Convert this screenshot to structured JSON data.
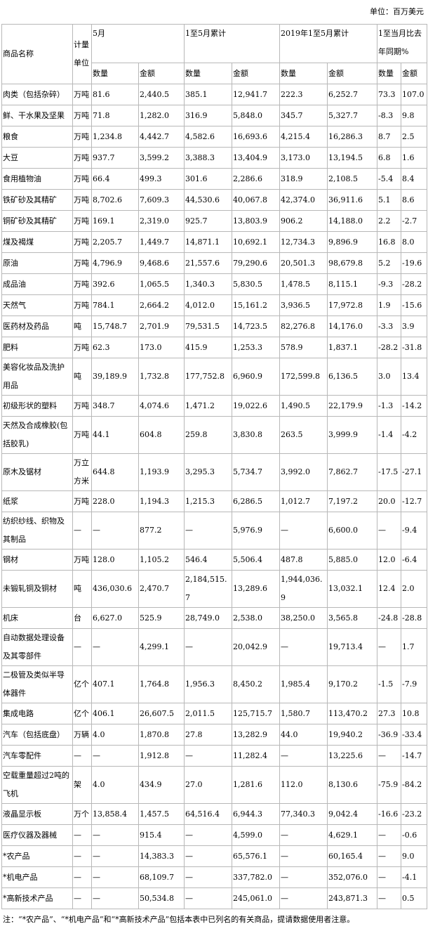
{
  "header": {
    "unit": "单位：百万美元"
  },
  "table": {
    "name_header": "商品名称",
    "unit_header": "计量单位",
    "groups": [
      {
        "label": "5月",
        "sub": [
          "数量",
          "金额"
        ]
      },
      {
        "label": "1至5月累计",
        "sub": [
          "数量",
          "金额"
        ]
      },
      {
        "label": "2019年1至5月累计",
        "sub": [
          "数量",
          "金额"
        ]
      },
      {
        "label": "1至当月比去年同期%",
        "sub": [
          "数量",
          "金额"
        ]
      }
    ],
    "rows": [
      [
        "肉类（包括杂碎）",
        "万吨",
        "81.6",
        "2,440.5",
        "385.1",
        "12,941.7",
        "222.3",
        "6,252.7",
        "73.3",
        "107.0"
      ],
      [
        "鲜、干水果及坚果",
        "万吨",
        "71.8",
        "1,282.0",
        "316.9",
        "5,848.0",
        "345.7",
        "5,327.7",
        "-8.3",
        "9.8"
      ],
      [
        "粮食",
        "万吨",
        "1,234.8",
        "4,442.7",
        "4,582.6",
        "16,693.6",
        "4,215.4",
        "16,286.3",
        "8.7",
        "2.5"
      ],
      [
        "大豆",
        "万吨",
        "937.7",
        "3,599.2",
        "3,388.3",
        "13,404.9",
        "3,173.0",
        "13,194.5",
        "6.8",
        "1.6"
      ],
      [
        "食用植物油",
        "万吨",
        "66.4",
        "499.3",
        "301.6",
        "2,286.6",
        "318.9",
        "2,108.5",
        "-5.4",
        "8.4"
      ],
      [
        "铁矿砂及其精矿",
        "万吨",
        "8,702.6",
        "7,609.3",
        "44,530.6",
        "40,067.8",
        "42,374.0",
        "36,911.6",
        "5.1",
        "8.6"
      ],
      [
        "铜矿砂及其精矿",
        "万吨",
        "169.1",
        "2,319.0",
        "925.7",
        "13,803.9",
        "906.2",
        "14,188.0",
        "2.2",
        "-2.7"
      ],
      [
        "煤及褐煤",
        "万吨",
        "2,205.7",
        "1,449.7",
        "14,871.1",
        "10,692.1",
        "12,734.3",
        "9,896.9",
        "16.8",
        "8.0"
      ],
      [
        "原油",
        "万吨",
        "4,796.9",
        "9,468.6",
        "21,557.6",
        "79,290.6",
        "20,501.3",
        "98,679.8",
        "5.2",
        "-19.6"
      ],
      [
        "成品油",
        "万吨",
        "392.6",
        "1,065.5",
        "1,340.3",
        "5,830.5",
        "1,478.5",
        "8,115.1",
        "-9.3",
        "-28.2"
      ],
      [
        "天然气",
        "万吨",
        "784.1",
        "2,664.2",
        "4,012.0",
        "15,161.2",
        "3,936.5",
        "17,972.8",
        "1.9",
        "-15.6"
      ],
      [
        "医药材及药品",
        "吨",
        "15,748.7",
        "2,701.9",
        "79,531.5",
        "14,723.5",
        "82,276.8",
        "14,176.0",
        "-3.3",
        "3.9"
      ],
      [
        "肥料",
        "万吨",
        "62.3",
        "173.0",
        "415.9",
        "1,253.3",
        "578.9",
        "1,837.1",
        "-28.2",
        "-31.8"
      ],
      [
        "美容化妆品及洗护用品",
        "吨",
        "39,189.9",
        "1,732.8",
        "177,752.8",
        "6,960.9",
        "172,599.8",
        "6,136.5",
        "3.0",
        "13.4"
      ],
      [
        "初级形状的塑料",
        "万吨",
        "348.7",
        "4,074.6",
        "1,471.2",
        "19,022.6",
        "1,490.5",
        "22,179.9",
        "-1.3",
        "-14.2"
      ],
      [
        "天然及合成橡胶(包括胶乳)",
        "万吨",
        "44.1",
        "604.8",
        "259.8",
        "3,830.8",
        "263.5",
        "3,999.9",
        "-1.4",
        "-4.2"
      ],
      [
        "原木及锯材",
        "万立方米",
        "644.8",
        "1,193.9",
        "3,295.3",
        "5,734.7",
        "3,992.0",
        "7,862.7",
        "-17.5",
        "-27.1"
      ],
      [
        "纸浆",
        "万吨",
        "228.0",
        "1,194.3",
        "1,215.3",
        "6,286.5",
        "1,012.7",
        "7,197.2",
        "20.0",
        "-12.7"
      ],
      [
        "纺织纱线、织物及其制品",
        "—",
        "—",
        "877.2",
        "—",
        "5,976.9",
        "—",
        "6,600.0",
        "—",
        "-9.4"
      ],
      [
        "钢材",
        "万吨",
        "128.0",
        "1,105.2",
        "546.4",
        "5,506.4",
        "487.8",
        "5,885.0",
        "12.0",
        "-6.4"
      ],
      [
        "未锻轧铜及铜材",
        "吨",
        "436,030.6",
        "2,470.7",
        "2,184,515.7",
        "13,289.6",
        "1,944,036.9",
        "13,032.1",
        "12.4",
        "2.0"
      ],
      [
        "机床",
        "台",
        "6,627.0",
        "525.9",
        "28,749.0",
        "2,538.0",
        "38,250.0",
        "3,565.8",
        "-24.8",
        "-28.8"
      ],
      [
        "自动数据处理设备及其零部件",
        "—",
        "—",
        "4,299.1",
        "—",
        "20,042.9",
        "—",
        "19,713.4",
        "—",
        "1.7"
      ],
      [
        "二极管及类似半导体器件",
        "亿个",
        "407.1",
        "1,764.8",
        "1,956.3",
        "8,450.2",
        "1,985.4",
        "9,170.2",
        "-1.5",
        "-7.9"
      ],
      [
        "集成电路",
        "亿个",
        "406.1",
        "26,607.5",
        "2,011.5",
        "125,715.7",
        "1,580.7",
        "113,470.2",
        "27.3",
        "10.8"
      ],
      [
        "汽车（包括底盘）",
        "万辆",
        "4.0",
        "1,870.8",
        "27.8",
        "13,282.9",
        "44.0",
        "19,940.2",
        "-36.9",
        "-33.4"
      ],
      [
        "汽车零配件",
        "—",
        "—",
        "1,912.8",
        "—",
        "11,282.4",
        "—",
        "13,225.6",
        "—",
        "-14.7"
      ],
      [
        "空载重量超过2吨的飞机",
        "架",
        "4.0",
        "434.9",
        "27.0",
        "1,281.6",
        "112.0",
        "8,130.6",
        "-75.9",
        "-84.2"
      ],
      [
        "液晶显示板",
        "万个",
        "13,858.4",
        "1,457.5",
        "64,516.4",
        "6,944.3",
        "77,340.3",
        "9,042.4",
        "-16.6",
        "-23.2"
      ],
      [
        "医疗仪器及器械",
        "—",
        "—",
        "915.4",
        "—",
        "4,599.0",
        "—",
        "4,629.1",
        "—",
        "-0.6"
      ],
      [
        "*农产品",
        "—",
        "—",
        "14,383.3",
        "—",
        "65,576.1",
        "—",
        "60,165.4",
        "—",
        "9.0"
      ],
      [
        "*机电产品",
        "—",
        "—",
        "68,109.7",
        "—",
        "337,782.0",
        "—",
        "352,076.0",
        "—",
        "-4.1"
      ],
      [
        "*高新技术产品",
        "—",
        "—",
        "50,534.8",
        "—",
        "245,061.0",
        "—",
        "243,871.3",
        "—",
        "0.5"
      ]
    ]
  },
  "footer": {
    "note": "注：“*农产品”、“*机电产品”和“*高新技术产品”包括本表中已列名的有关商品，提请数据使用者注意。"
  }
}
